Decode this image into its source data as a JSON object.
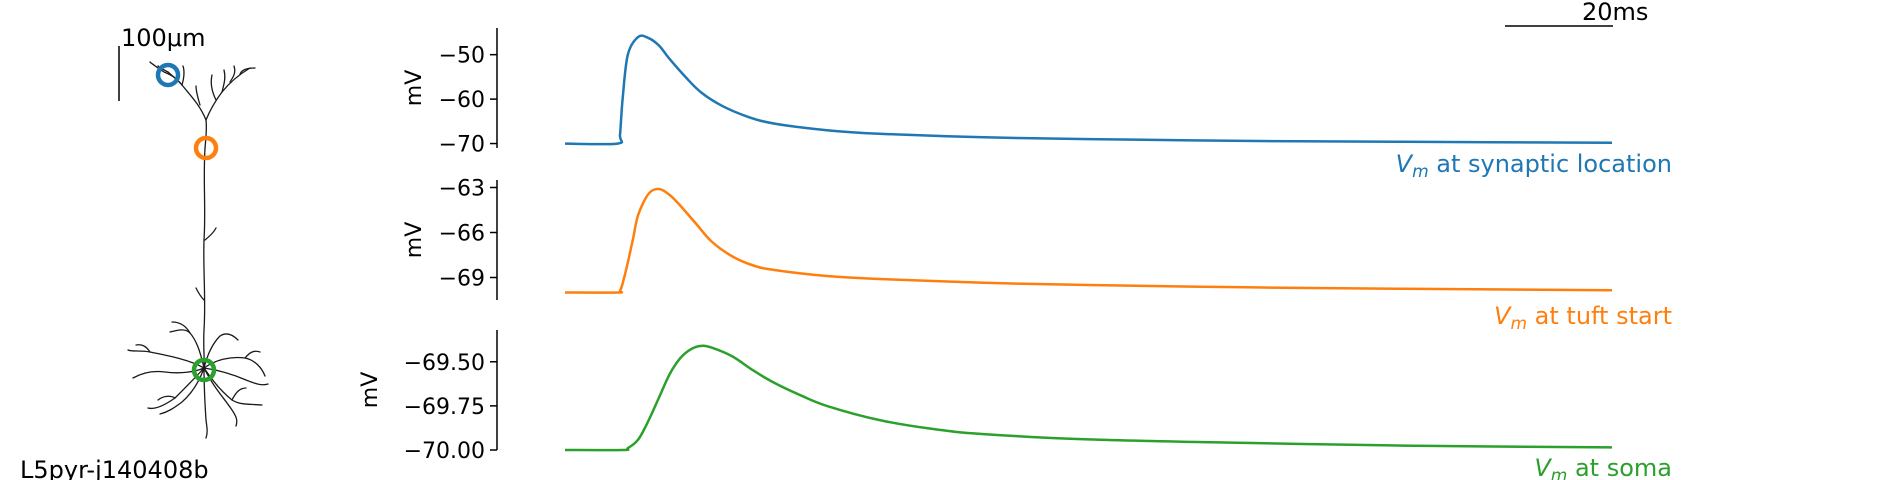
{
  "figure": {
    "cell_name": "L5pyr-j140408b",
    "morphology_scale_label": "100μm",
    "time_scale_label": "20ms",
    "marker_colors": [
      "#1f77b4",
      "#ff7f0e",
      "#2ca02c"
    ],
    "morphology_color": "#1a1a1a"
  },
  "chart_data": [
    {
      "type": "line",
      "ylabel": "mV",
      "yticks": [
        -70,
        -60,
        -50
      ],
      "ylim": [
        -71,
        -44
      ],
      "xlim": [
        0,
        200
      ],
      "color": "#1f77b4",
      "label": {
        "symbol": "V",
        "subscript": "m",
        "text": " at synaptic location"
      },
      "series": [
        {
          "x": [
            0,
            10,
            10.5,
            11,
            12,
            14,
            16,
            18,
            20,
            23,
            26,
            30,
            35,
            40,
            50,
            60,
            80,
            100,
            130,
            160,
            200
          ],
          "values": [
            -70,
            -70,
            -68,
            -60,
            -50,
            -46,
            -46.3,
            -48,
            -51,
            -55,
            -58.5,
            -61.5,
            -64,
            -65.5,
            -67,
            -67.8,
            -68.6,
            -69.0,
            -69.4,
            -69.6,
            -69.8
          ]
        }
      ]
    },
    {
      "type": "line",
      "ylabel": "mV",
      "yticks": [
        -69,
        -66,
        -63
      ],
      "ylim": [
        -70.5,
        -62.5
      ],
      "xlim": [
        0,
        200
      ],
      "color": "#ff7f0e",
      "label": {
        "symbol": "V",
        "subscript": "m",
        "text": " at tuft start"
      },
      "series": [
        {
          "x": [
            0,
            10,
            10.5,
            11,
            12,
            13,
            14,
            16,
            18,
            20,
            22,
            25,
            28,
            32,
            36,
            40,
            50,
            60,
            80,
            100,
            130,
            160,
            200
          ],
          "values": [
            -70,
            -70,
            -69.9,
            -69.4,
            -68,
            -66.4,
            -64.8,
            -63.4,
            -63.1,
            -63.5,
            -64.2,
            -65.4,
            -66.6,
            -67.6,
            -68.2,
            -68.5,
            -68.9,
            -69.1,
            -69.35,
            -69.5,
            -69.65,
            -69.75,
            -69.85
          ]
        }
      ]
    },
    {
      "type": "line",
      "ylabel": "mV",
      "yticks": [
        -70.0,
        -69.75,
        -69.5
      ],
      "ytick_labels": [
        "−70.00",
        "−69.75",
        "−69.50"
      ],
      "ylim": [
        -70.0,
        -69.32
      ],
      "xlim": [
        0,
        200
      ],
      "color": "#2ca02c",
      "label": {
        "symbol": "V",
        "subscript": "m",
        "text": " at soma"
      },
      "series": [
        {
          "x": [
            0,
            11,
            12,
            14,
            16,
            18,
            20,
            22,
            24,
            26,
            28,
            32,
            36,
            40,
            45,
            50,
            60,
            70,
            80,
            100,
            130,
            160,
            200
          ],
          "values": [
            -70.0,
            -70.0,
            -69.99,
            -69.94,
            -69.83,
            -69.7,
            -69.57,
            -69.48,
            -69.43,
            -69.41,
            -69.42,
            -69.47,
            -69.55,
            -69.62,
            -69.69,
            -69.75,
            -69.83,
            -69.88,
            -69.91,
            -69.94,
            -69.96,
            -69.975,
            -69.985
          ]
        }
      ]
    }
  ]
}
